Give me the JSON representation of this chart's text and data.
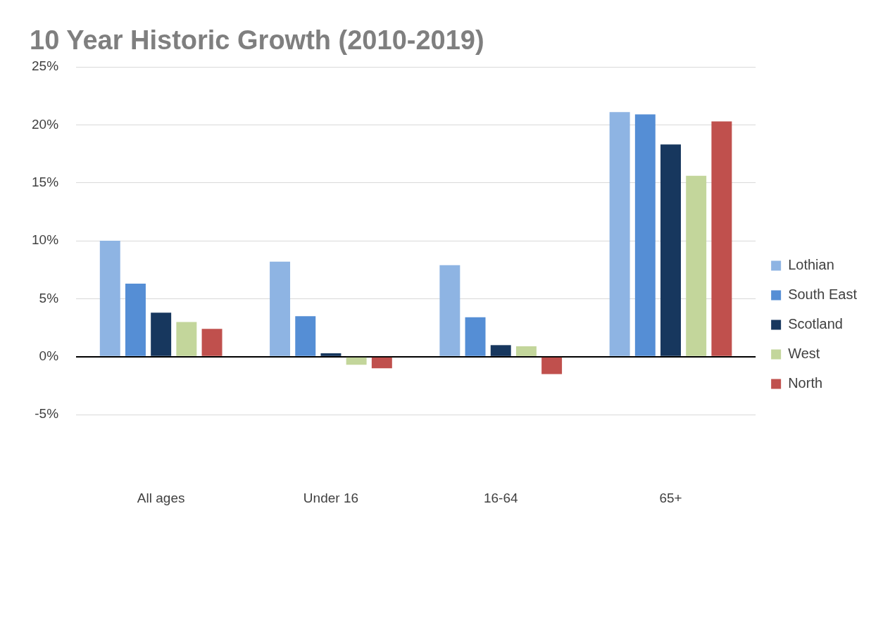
{
  "chart_data": {
    "type": "bar",
    "title": "10 Year Historic Growth (2010-2019)",
    "categories": [
      "All ages",
      "Under 16",
      "16-64",
      "65+"
    ],
    "series": [
      {
        "name": "Lothian",
        "color": "#8eb4e3",
        "values": [
          10.0,
          8.2,
          7.9,
          21.1
        ]
      },
      {
        "name": "South East",
        "color": "#558ed5",
        "values": [
          6.3,
          3.5,
          3.4,
          20.9
        ]
      },
      {
        "name": "Scotland",
        "color": "#17375e",
        "values": [
          3.8,
          0.3,
          1.0,
          18.3
        ]
      },
      {
        "name": "West",
        "color": "#c3d69b",
        "values": [
          3.0,
          -0.7,
          0.9,
          15.6
        ]
      },
      {
        "name": "North",
        "color": "#c0504d",
        "values": [
          2.4,
          -1.0,
          -1.5,
          20.3
        ]
      }
    ],
    "ylim": [
      -5,
      25
    ],
    "yticks": [
      {
        "value": -5,
        "label": "-5%"
      },
      {
        "value": 0,
        "label": "0%"
      },
      {
        "value": 5,
        "label": "5%"
      },
      {
        "value": 10,
        "label": "10%"
      },
      {
        "value": 15,
        "label": "15%"
      },
      {
        "value": 20,
        "label": "20%"
      },
      {
        "value": 25,
        "label": "25%"
      }
    ],
    "grid": "y",
    "legend": "right"
  }
}
